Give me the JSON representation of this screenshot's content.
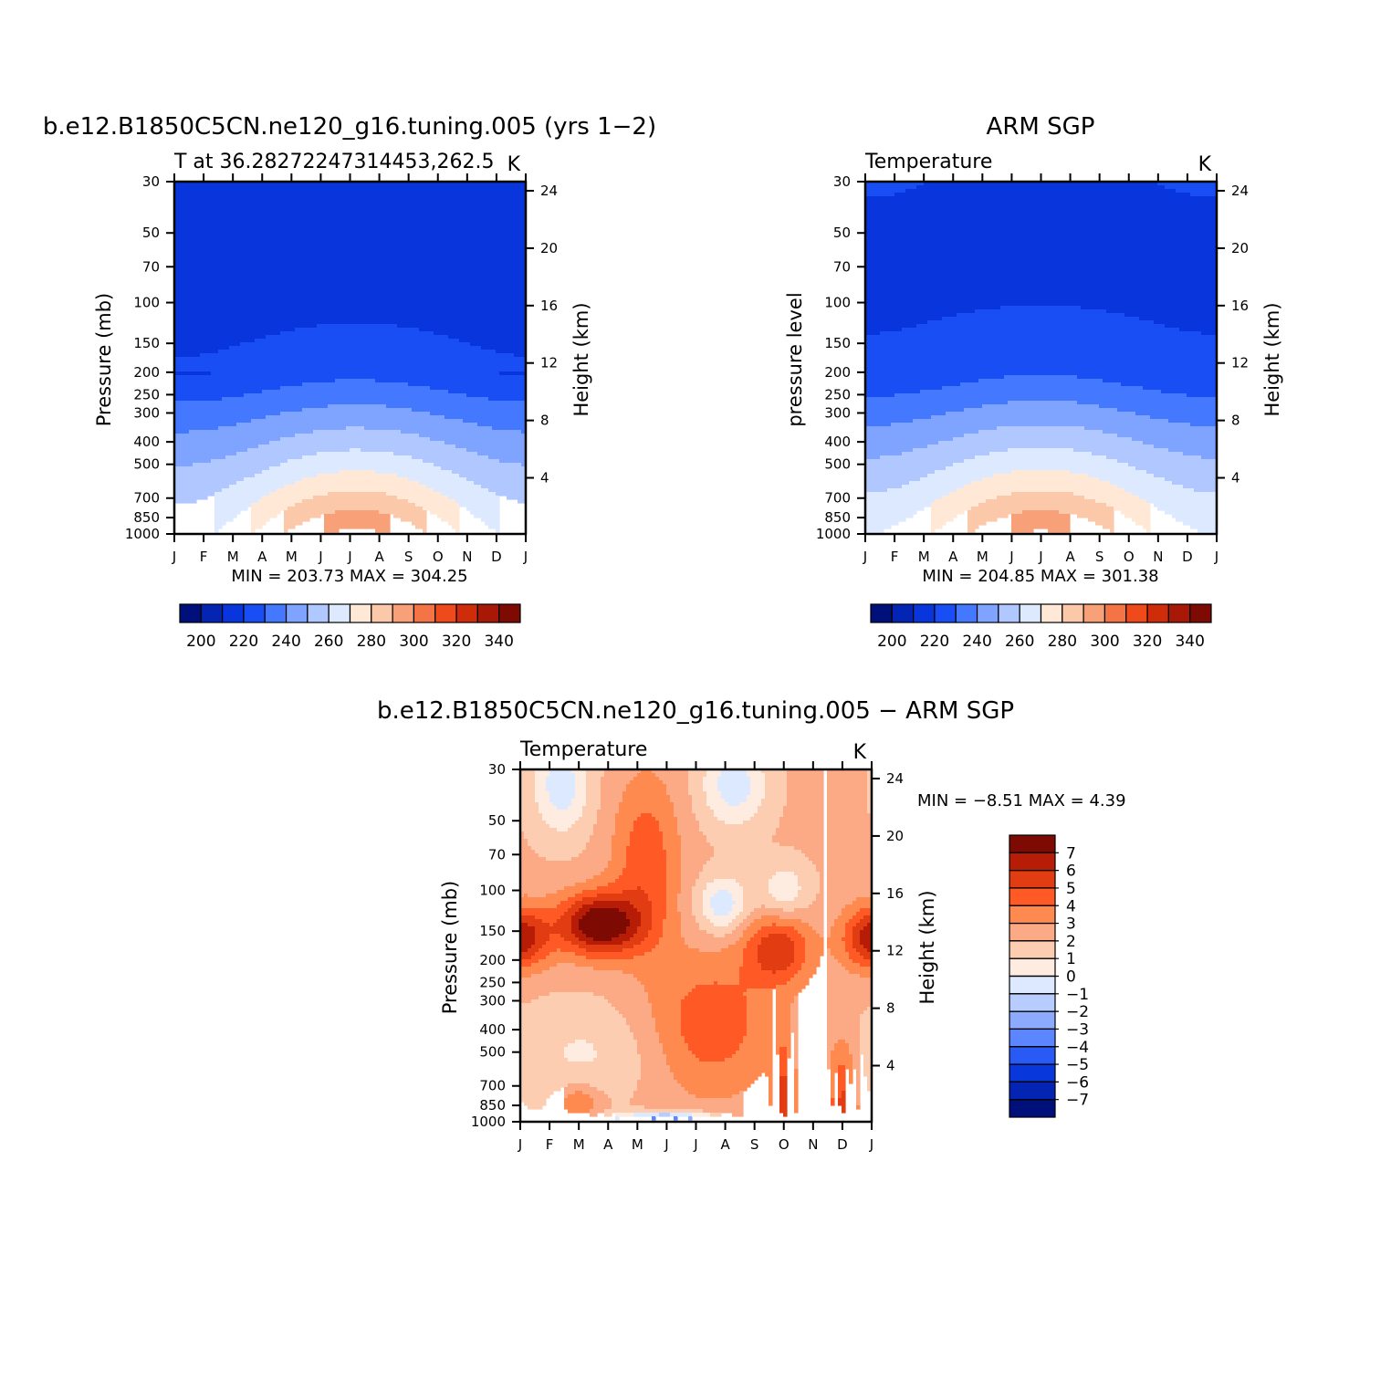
{
  "chart_data": [
    {
      "id": "model",
      "type": "heatmap",
      "title": "b.e12.B1850C5CN.ne120_g16.tuning.005 (yrs 1−2)",
      "subtitle_left": "T at 36.28272247314453,262.5",
      "subtitle_right": "K",
      "ylabel": "Pressure (mb)",
      "y2label": "Height (km)",
      "min_label": "MIN =",
      "min_value": "203.73",
      "max_label": "MAX =",
      "max_value": "304.25",
      "x_ticks": [
        "J",
        "F",
        "M",
        "A",
        "M",
        "J",
        "J",
        "A",
        "S",
        "O",
        "N",
        "D",
        "J"
      ],
      "y_ticks": [
        "30",
        "50",
        "70",
        "100",
        "150",
        "200",
        "250",
        "300",
        "400",
        "500",
        "700",
        "850",
        "1000"
      ],
      "y2_ticks": [
        "24",
        "20",
        "16",
        "12",
        "8",
        "4"
      ],
      "colorbar_labels": [
        "200",
        "220",
        "240",
        "260",
        "280",
        "300",
        "320",
        "340"
      ],
      "colors": [
        "#00107a",
        "#0424b4",
        "#0836dc",
        "#1a4ef5",
        "#4478ff",
        "#7fa4ff",
        "#b0c8ff",
        "#dce9ff",
        "#ffe8d6",
        "#fcc8aa",
        "#f8a078",
        "#f57445",
        "#ee4a1c",
        "#cf2c0a",
        "#a81806",
        "#7e0a04"
      ],
      "ylim": [
        1000,
        30
      ],
      "xlim": [
        0,
        12
      ],
      "field": "model temperature vs month and pressure"
    },
    {
      "id": "obs",
      "type": "heatmap",
      "title": "ARM SGP",
      "subtitle_left": "Temperature",
      "subtitle_right": "K",
      "ylabel": "pressure level",
      "y2label": "Height (km)",
      "min_label": "MIN =",
      "min_value": "204.85",
      "max_label": "MAX =",
      "max_value": "301.38",
      "x_ticks": [
        "J",
        "F",
        "M",
        "A",
        "M",
        "J",
        "J",
        "A",
        "S",
        "O",
        "N",
        "D",
        "J"
      ],
      "y_ticks": [
        "30",
        "50",
        "70",
        "100",
        "150",
        "200",
        "250",
        "300",
        "400",
        "500",
        "700",
        "850",
        "1000"
      ],
      "y2_ticks": [
        "24",
        "20",
        "16",
        "12",
        "8",
        "4"
      ],
      "colorbar_labels": [
        "200",
        "220",
        "240",
        "260",
        "280",
        "300",
        "320",
        "340"
      ],
      "ylim": [
        1000,
        30
      ],
      "xlim": [
        0,
        12
      ]
    },
    {
      "id": "diff",
      "type": "heatmap",
      "title": "b.e12.B1850C5CN.ne120_g16.tuning.005 − ARM SGP",
      "subtitle_left": "Temperature",
      "subtitle_right": "K",
      "ylabel": "Pressure (mb)",
      "y2label": "Height (km)",
      "min_label": "MIN =",
      "min_value": "−8.51",
      "max_label": "MAX =",
      "max_value": "4.39",
      "x_ticks": [
        "J",
        "F",
        "M",
        "A",
        "M",
        "J",
        "J",
        "A",
        "S",
        "O",
        "N",
        "D",
        "J"
      ],
      "y_ticks": [
        "30",
        "50",
        "70",
        "100",
        "150",
        "200",
        "250",
        "300",
        "400",
        "500",
        "700",
        "850",
        "1000"
      ],
      "y2_ticks": [
        "24",
        "20",
        "16",
        "12",
        "8",
        "4"
      ],
      "colorbar_labels": [
        "7",
        "6",
        "5",
        "4",
        "3",
        "2",
        "1",
        "0",
        "−1",
        "−2",
        "−3",
        "−4",
        "−5",
        "−6",
        "−7"
      ],
      "colors": [
        "#7e0a04",
        "#b71c06",
        "#e23c12",
        "#ff5a25",
        "#ff8a50",
        "#fcaa86",
        "#fccdb0",
        "#ffece0",
        "#dce9ff",
        "#b8cdff",
        "#8cabff",
        "#5c86ff",
        "#2a5af5",
        "#0838dc",
        "#0424b4",
        "#00107a"
      ],
      "ylim": [
        1000,
        30
      ],
      "xlim": [
        0,
        12
      ]
    }
  ]
}
